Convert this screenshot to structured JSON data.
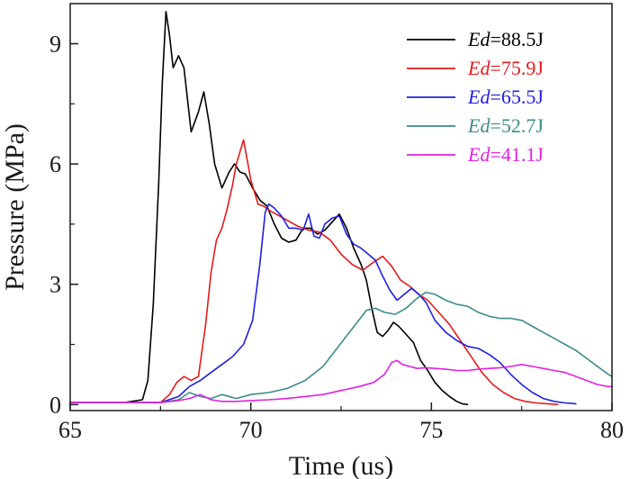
{
  "chart_data": {
    "type": "line",
    "title": "",
    "xlabel": "Time (us)",
    "ylabel": "Pressure (MPa)",
    "xlim": [
      65,
      80
    ],
    "ylim": [
      -0.15,
      10.0
    ],
    "xticks": [
      65,
      70,
      75,
      80
    ],
    "yticks": [
      0,
      3,
      6,
      9
    ],
    "xtick_labels": [
      "65",
      "70",
      "75",
      "80"
    ],
    "ytick_labels": [
      "0",
      "3",
      "6",
      "9"
    ],
    "grid": false,
    "legend_position": "top-right",
    "series": [
      {
        "name": "88.5J",
        "name_prefix": "Ed",
        "name_sep": "=",
        "color": "#000000",
        "x": [
          65.0,
          66.5,
          67.0,
          67.15,
          67.3,
          67.45,
          67.55,
          67.65,
          67.75,
          67.85,
          68.0,
          68.15,
          68.35,
          68.55,
          68.7,
          68.85,
          69.0,
          69.2,
          69.4,
          69.55,
          69.7,
          69.85,
          70.05,
          70.25,
          70.45,
          70.65,
          70.85,
          71.05,
          71.25,
          71.45,
          71.65,
          71.85,
          72.05,
          72.25,
          72.45,
          72.65,
          72.85,
          73.05,
          73.2,
          73.35,
          73.5,
          73.65,
          73.8,
          73.95,
          74.1,
          74.3,
          74.5,
          74.7,
          74.9,
          75.1,
          75.3,
          75.5,
          75.7,
          75.85,
          76.0
        ],
        "y": [
          0.05,
          0.05,
          0.12,
          0.6,
          2.5,
          5.5,
          8.0,
          9.8,
          9.2,
          8.4,
          8.7,
          8.4,
          6.8,
          7.3,
          7.8,
          7.0,
          6.0,
          5.4,
          5.8,
          6.0,
          5.8,
          5.75,
          5.4,
          5.1,
          4.95,
          4.5,
          4.15,
          4.05,
          4.1,
          4.4,
          4.4,
          4.25,
          4.35,
          4.55,
          4.75,
          4.4,
          3.9,
          3.5,
          3.1,
          2.4,
          1.8,
          1.7,
          1.85,
          2.05,
          1.95,
          1.75,
          1.55,
          1.1,
          0.85,
          0.55,
          0.35,
          0.2,
          0.08,
          0.02,
          0.0
        ]
      },
      {
        "name": "75.9J",
        "name_prefix": "Ed",
        "name_sep": "=",
        "color": "#e41a1c",
        "x": [
          65.0,
          67.5,
          67.75,
          67.95,
          68.15,
          68.35,
          68.55,
          68.75,
          68.9,
          69.05,
          69.2,
          69.35,
          69.5,
          69.6,
          69.7,
          69.8,
          69.9,
          70.0,
          70.1,
          70.2,
          70.35,
          70.5,
          70.7,
          71.0,
          71.3,
          71.6,
          71.9,
          72.2,
          72.5,
          72.8,
          73.1,
          73.4,
          73.65,
          73.9,
          74.15,
          74.4,
          74.65,
          74.9,
          75.2,
          75.5,
          75.8,
          76.1,
          76.4,
          76.7,
          77.0,
          77.3,
          77.6,
          77.9,
          78.2,
          78.5
        ],
        "y": [
          0.05,
          0.05,
          0.25,
          0.55,
          0.7,
          0.6,
          0.7,
          2.0,
          3.3,
          4.1,
          4.4,
          4.9,
          5.5,
          6.0,
          6.3,
          6.6,
          6.1,
          5.6,
          5.3,
          5.0,
          4.95,
          4.85,
          4.75,
          4.6,
          4.45,
          4.35,
          4.3,
          4.1,
          3.75,
          3.5,
          3.35,
          3.55,
          3.7,
          3.45,
          3.1,
          2.95,
          2.75,
          2.6,
          2.3,
          2.0,
          1.6,
          1.2,
          0.8,
          0.5,
          0.3,
          0.15,
          0.08,
          0.04,
          0.02,
          0.0
        ]
      },
      {
        "name": "65.5J",
        "name_prefix": "Ed",
        "name_sep": "=",
        "color": "#1f1fe0",
        "x": [
          65.0,
          67.5,
          68.0,
          68.3,
          68.6,
          68.9,
          69.2,
          69.5,
          69.8,
          70.05,
          70.25,
          70.4,
          70.5,
          70.65,
          70.85,
          71.05,
          71.25,
          71.45,
          71.6,
          71.75,
          71.9,
          72.05,
          72.25,
          72.45,
          72.65,
          72.85,
          73.05,
          73.25,
          73.45,
          73.65,
          73.85,
          74.05,
          74.25,
          74.45,
          74.65,
          74.85,
          75.1,
          75.4,
          75.7,
          76.0,
          76.3,
          76.6,
          76.9,
          77.2,
          77.5,
          77.8,
          78.1,
          78.4,
          78.7,
          79.0
        ],
        "y": [
          0.05,
          0.05,
          0.2,
          0.45,
          0.6,
          0.8,
          1.0,
          1.2,
          1.5,
          2.1,
          3.5,
          4.8,
          5.0,
          4.9,
          4.7,
          4.4,
          4.4,
          4.35,
          4.75,
          4.2,
          4.15,
          4.5,
          4.65,
          4.7,
          4.25,
          4.0,
          3.9,
          3.75,
          3.6,
          3.2,
          2.85,
          2.6,
          2.75,
          2.9,
          2.75,
          2.55,
          2.1,
          1.8,
          1.6,
          1.45,
          1.4,
          1.25,
          1.05,
          0.75,
          0.5,
          0.3,
          0.15,
          0.08,
          0.04,
          0.02
        ]
      },
      {
        "name": "52.7J",
        "name_prefix": "Ed",
        "name_sep": "=",
        "color": "#3c8c8c",
        "x": [
          65.0,
          67.5,
          68.0,
          68.3,
          68.6,
          68.9,
          69.2,
          69.6,
          70.0,
          70.5,
          71.0,
          71.5,
          72.0,
          72.3,
          72.6,
          72.9,
          73.2,
          73.45,
          73.7,
          74.0,
          74.3,
          74.6,
          74.85,
          75.1,
          75.4,
          75.7,
          76.0,
          76.3,
          76.6,
          76.9,
          77.2,
          77.5,
          77.8,
          78.1,
          78.4,
          78.7,
          79.0,
          79.3,
          79.6,
          79.9,
          80.0
        ],
        "y": [
          0.05,
          0.05,
          0.12,
          0.3,
          0.2,
          0.15,
          0.25,
          0.15,
          0.25,
          0.3,
          0.4,
          0.6,
          0.95,
          1.3,
          1.65,
          2.0,
          2.35,
          2.4,
          2.3,
          2.25,
          2.4,
          2.65,
          2.8,
          2.75,
          2.6,
          2.5,
          2.45,
          2.3,
          2.2,
          2.15,
          2.15,
          2.1,
          1.95,
          1.8,
          1.65,
          1.5,
          1.35,
          1.15,
          0.95,
          0.75,
          0.7
        ]
      },
      {
        "name": "41.1J",
        "name_prefix": "Ed",
        "name_sep": "=",
        "color": "#e022e0",
        "x": [
          65.0,
          67.5,
          68.0,
          68.3,
          68.6,
          68.9,
          69.2,
          69.6,
          70.0,
          70.5,
          71.0,
          71.5,
          72.0,
          72.5,
          73.0,
          73.4,
          73.7,
          73.9,
          74.05,
          74.2,
          74.4,
          74.6,
          74.85,
          75.1,
          75.4,
          75.7,
          76.0,
          76.3,
          76.6,
          76.9,
          77.2,
          77.5,
          77.8,
          78.1,
          78.4,
          78.7,
          79.0,
          79.3,
          79.6,
          79.9,
          80.0
        ],
        "y": [
          0.05,
          0.05,
          0.1,
          0.15,
          0.25,
          0.12,
          0.08,
          0.08,
          0.1,
          0.12,
          0.15,
          0.2,
          0.25,
          0.35,
          0.45,
          0.55,
          0.75,
          1.05,
          1.1,
          1.0,
          0.95,
          0.9,
          0.92,
          0.9,
          0.88,
          0.85,
          0.85,
          0.88,
          0.9,
          0.92,
          0.95,
          1.0,
          0.95,
          0.9,
          0.85,
          0.8,
          0.7,
          0.6,
          0.5,
          0.45,
          0.45
        ]
      }
    ]
  }
}
